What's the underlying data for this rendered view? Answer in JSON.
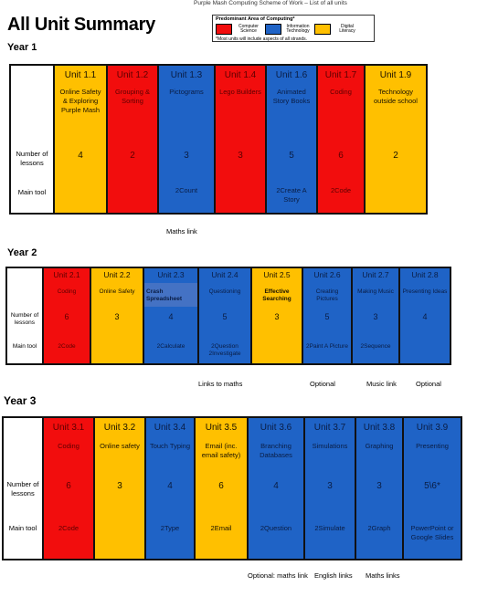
{
  "header": {
    "title": "All Unit Summary",
    "caption": "Purple Mash Computing Scheme of Work – List of all units"
  },
  "legend": {
    "heading": "Predominant Area of Computing*",
    "items": [
      {
        "label": "Computer Science",
        "color": "#f20d0d"
      },
      {
        "label": "Information Technology",
        "color": "#1f63c6"
      },
      {
        "label": "Digital Literacy",
        "color": "#ffc000"
      }
    ],
    "note": "*Most units will include aspects of all strands."
  },
  "row_labels": {
    "lessons": "Number of lessons",
    "tool": "Main tool"
  },
  "years": [
    {
      "label": "Year 1",
      "units": [
        {
          "code": "Unit 1.1",
          "name": "Online Safety & Exploring Purple Mash",
          "lessons": "4",
          "tool": "",
          "area": "gold"
        },
        {
          "code": "Unit 1.2",
          "name": "Grouping & Sorting",
          "lessons": "2",
          "tool": "",
          "area": "red"
        },
        {
          "code": "Unit 1.3",
          "name": "Pictograms",
          "lessons": "3",
          "tool": "2Count",
          "area": "blue"
        },
        {
          "code": "Unit 1.4",
          "name": "Lego Builders",
          "lessons": "3",
          "tool": "",
          "area": "red"
        },
        {
          "code": "Unit 1.6",
          "name": "Animated Story Books",
          "lessons": "5",
          "tool": "2Create A Story",
          "area": "blue"
        },
        {
          "code": "Unit 1.7",
          "name": "Coding",
          "lessons": "6",
          "tool": "2Code",
          "area": "red"
        },
        {
          "code": "Unit 1.9",
          "name": "Technology outside school",
          "lessons": "2",
          "tool": "",
          "area": "gold"
        }
      ],
      "notes": [
        {
          "text": "Maths link"
        }
      ]
    },
    {
      "label": "Year 2",
      "units": [
        {
          "code": "Unit 2.1",
          "name": "Coding",
          "lessons": "6",
          "tool": "2Code",
          "area": "red"
        },
        {
          "code": "Unit 2.2",
          "name": "Online Safety",
          "lessons": "3",
          "tool": "",
          "area": "gold"
        },
        {
          "code": "Unit 2.3",
          "name": "Crash Spreadsheet",
          "lessons": "4",
          "tool": "2Calculate",
          "area": "blue"
        },
        {
          "code": "Unit 2.4",
          "name": "Questioning",
          "lessons": "5",
          "tool": "2Question 2Investigate",
          "area": "blue"
        },
        {
          "code": "Unit 2.5",
          "name": "Effective Searching",
          "lessons": "3",
          "tool": "",
          "area": "gold"
        },
        {
          "code": "Unit 2.6",
          "name": "Creating Pictures",
          "lessons": "5",
          "tool": "2Paint A Picture",
          "area": "blue"
        },
        {
          "code": "Unit 2.7",
          "name": "Making Music",
          "lessons": "3",
          "tool": "2Sequence",
          "area": "blue"
        },
        {
          "code": "Unit 2.8",
          "name": "Presenting Ideas",
          "lessons": "4",
          "tool": "",
          "area": "blue"
        }
      ],
      "notes": [
        {
          "text": "Links to maths"
        },
        {
          "text": "Optional"
        },
        {
          "text": "Music link"
        },
        {
          "text": "Optional"
        }
      ]
    },
    {
      "label": "Year 3",
      "units": [
        {
          "code": "Unit 3.1",
          "name": "Coding",
          "lessons": "6",
          "tool": "2Code",
          "area": "red"
        },
        {
          "code": "Unit 3.2",
          "name": "Online safety",
          "lessons": "3",
          "tool": "",
          "area": "gold"
        },
        {
          "code": "Unit 3.4",
          "name": "Touch Typing",
          "lessons": "4",
          "tool": "2Type",
          "area": "blue"
        },
        {
          "code": "Unit 3.5",
          "name": "Email (inc. email safety)",
          "lessons": "6",
          "tool": "2Email",
          "area": "gold"
        },
        {
          "code": "Unit 3.6",
          "name": "Branching Databases",
          "lessons": "4",
          "tool": "2Question",
          "area": "blue"
        },
        {
          "code": "Unit 3.7",
          "name": "Simulations",
          "lessons": "3",
          "tool": "2Simulate",
          "area": "blue"
        },
        {
          "code": "Unit 3.8",
          "name": "Graphing",
          "lessons": "3",
          "tool": "2Graph",
          "area": "blue"
        },
        {
          "code": "Unit 3.9",
          "name": "Presenting",
          "lessons": "5\\6*",
          "tool": "PowerPoint or Google Slides",
          "area": "blue"
        }
      ],
      "notes": [
        {
          "text": "Optional: maths link"
        },
        {
          "text": "English links"
        },
        {
          "text": "Maths links"
        }
      ]
    }
  ]
}
